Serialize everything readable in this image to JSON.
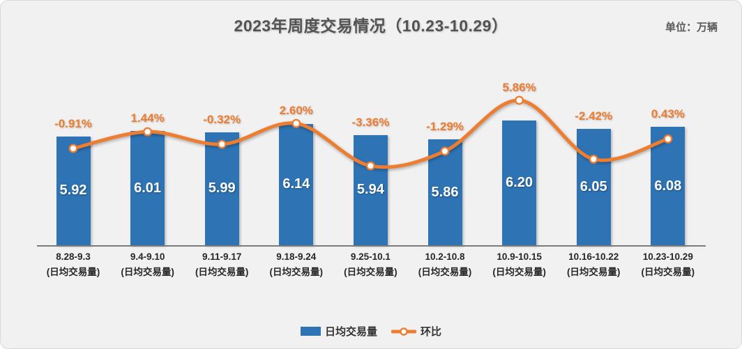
{
  "header": {
    "title": "2023年周度交易情况（10.23-10.29）",
    "unit_label": "单位：万辆"
  },
  "legend": {
    "bars_label": "日均交易量",
    "line_label": "环比"
  },
  "chart_data": {
    "type": "combo-bar-line",
    "title": "2023年周度交易情况（10.23-10.29）",
    "unit": "万辆",
    "categories": [
      "8.28-9.3",
      "9.4-9.10",
      "9.11-9.17",
      "9.18-9.24",
      "9.25-10.1",
      "10.2-10.8",
      "10.9-10.15",
      "10.16-10.22",
      "10.23-10.29"
    ],
    "category_sublabel": "(日均交易量)",
    "series": [
      {
        "name": "日均交易量",
        "type": "bar",
        "color": "#2e74b5",
        "values": [
          5.92,
          6.01,
          5.99,
          6.14,
          5.94,
          5.86,
          6.2,
          6.05,
          6.08
        ],
        "labels": [
          "5.92",
          "6.01",
          "5.99",
          "6.14",
          "5.94",
          "5.86",
          "6.20",
          "6.05",
          "6.08"
        ]
      },
      {
        "name": "环比",
        "type": "line",
        "color": "#ed7d31",
        "marker": "circle-white-fill",
        "values_pct": [
          -0.91,
          1.44,
          -0.32,
          2.6,
          -3.36,
          -1.29,
          5.86,
          -2.42,
          0.43
        ],
        "labels": [
          "-0.91%",
          "1.44%",
          "-0.32%",
          "2.60%",
          "-3.36%",
          "-1.29%",
          "5.86%",
          "-2.42%",
          "0.43%"
        ]
      }
    ],
    "bar_axis_min": 4.0,
    "grid": false,
    "value_labels_position": "inside-center",
    "pct_labels_position": "above",
    "legend_position": "bottom"
  },
  "colors": {
    "bar": "#2e74b5",
    "line": "#ed7d31",
    "background": "#f1f1f2",
    "axis": "#7b7b7b",
    "title_text": "#535353",
    "bar_value_text": "#ffffff",
    "x_label_text": "#262626"
  }
}
